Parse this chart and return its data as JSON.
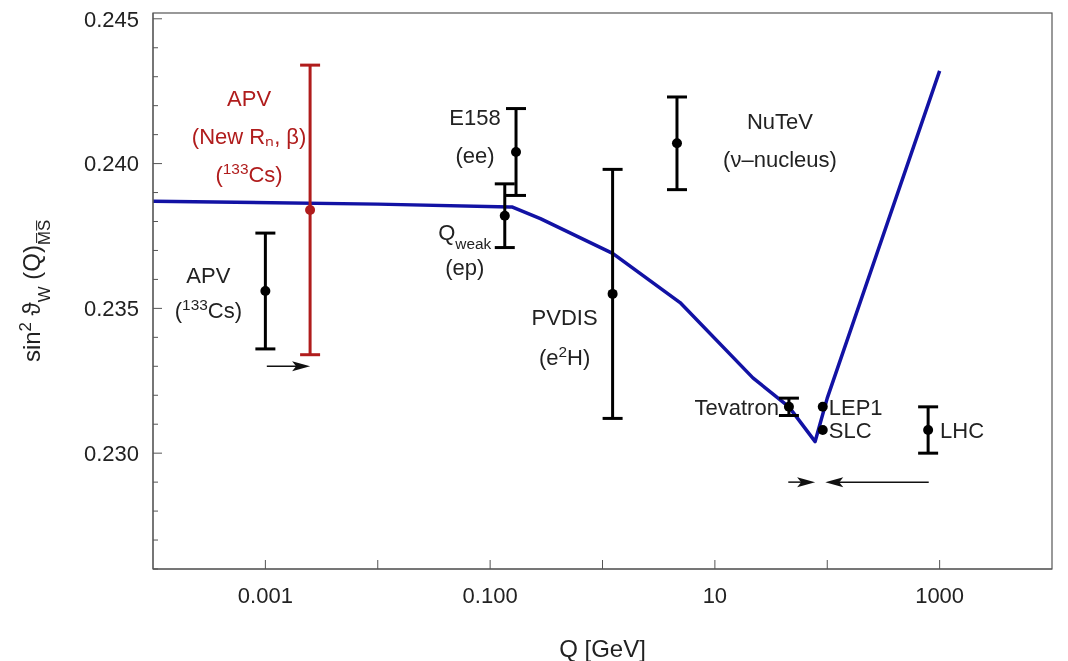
{
  "chart_data": {
    "type": "scatter",
    "xlabel": "Q [GeV]",
    "ylabel": "sin$^{2}$ ϑ$_{W}$ (Q)$_{M̅S̅}$",
    "log": "x",
    "marker": "circle",
    "xlim": [
      0.0001,
      10000
    ],
    "xticks": [
      0.001,
      {
        "value": 0.01,
        "label": null
      },
      {
        "value": 0.1,
        "label": "0.100"
      },
      {
        "value": 1,
        "label": null
      },
      10,
      {
        "value": 100,
        "label": null
      },
      1000
    ],
    "ylim": [
      0.226,
      0.2452
    ],
    "yticks": [
      {
        "value": 0.226,
        "label": null
      },
      {
        "value": 0.227,
        "label": null
      },
      {
        "value": 0.228,
        "label": null
      },
      {
        "value": 0.229,
        "label": null
      },
      {
        "value": 0.23,
        "label": "0.230"
      },
      {
        "value": 0.231,
        "label": null
      },
      {
        "value": 0.232,
        "label": null
      },
      {
        "value": 0.233,
        "label": null
      },
      {
        "value": 0.234,
        "label": null
      },
      {
        "value": 0.235,
        "label": "0.235"
      },
      {
        "value": 0.236,
        "label": null
      },
      {
        "value": 0.237,
        "label": null
      },
      {
        "value": 0.238,
        "label": null
      },
      {
        "value": 0.239,
        "label": null
      },
      {
        "value": 0.24,
        "label": "0.240"
      },
      {
        "value": 0.241,
        "label": null
      },
      {
        "value": 0.242,
        "label": null
      },
      {
        "value": 0.243,
        "label": null
      },
      {
        "value": 0.244,
        "label": null
      },
      {
        "value": 0.245,
        "label": "0.245"
      }
    ],
    "series": [
      {
        "type": "line",
        "marker": "none",
        "color": "#1212a4",
        "x": [
          0.0001,
          0.01,
          0.158,
          0.28,
          1.23,
          4.9,
          21.8,
          45.6,
          78,
          100,
          1000
        ],
        "values": [
          0.2387,
          0.2386,
          0.2385,
          0.2381,
          0.2369,
          0.2352,
          0.2326,
          0.2316,
          0.2304,
          0.2319,
          0.2432
        ]
      },
      {
        "name": "APV\n($^{133}$Cs)",
        "color": "#000000",
        "x": [
          0.001
        ],
        "values": [
          0.2356
        ],
        "errors": [
          0.002
        ]
      },
      {
        "name": "APV\n(New Rₙ, β)\n($^{133}$Cs)",
        "color": "#b01c1c",
        "x": [
          0.0025
        ],
        "values": [
          0.2384
        ],
        "errors": [
          0.005
        ]
      },
      {
        "name": "Q$_{weak}$\n(ep)",
        "color": "#000000",
        "x": [
          0.135
        ],
        "values": [
          0.2382
        ],
        "errors": [
          0.0011
        ]
      },
      {
        "name": "E158\n(ee)",
        "color": "#000000",
        "x": [
          0.17
        ],
        "values": [
          0.2404
        ],
        "errors": [
          0.0015
        ]
      },
      {
        "name": "PVDIS\n(e$^{2}$H)",
        "color": "#000000",
        "x": [
          1.23
        ],
        "values": [
          0.2355
        ],
        "errors": [
          0.0043
        ]
      },
      {
        "name": "NuTeV\n(ν–nucleus)",
        "color": "#000000",
        "x": [
          4.6
        ],
        "values": [
          0.2407
        ],
        "errors": [
          0.0016
        ]
      },
      {
        "name": "Tevatron",
        "color": "#000000",
        "x": [
          45.6
        ],
        "values": [
          0.2316
        ],
        "errors": [
          0.0003
        ]
      },
      {
        "name": "LEP1",
        "color": "#000000",
        "x": [
          91.2
        ],
        "values": [
          0.2316
        ]
      },
      {
        "name": "SLC",
        "color": "#000000",
        "x": [
          91.2
        ],
        "values": [
          0.2308
        ]
      },
      {
        "name": "LHC",
        "color": "#000000",
        "x": [
          790
        ],
        "values": [
          0.2308
        ],
        "errors": [
          0.0008
        ]
      }
    ]
  }
}
